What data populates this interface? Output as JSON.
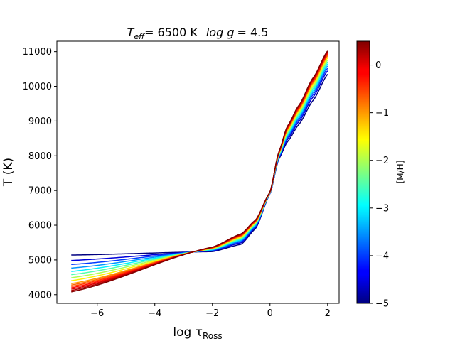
{
  "chart_data": {
    "type": "line",
    "title": "T_eff = 6500 K   log g = 4.5",
    "title_parts": {
      "teff_symbol": "T",
      "teff_sub": "eff",
      "teff_value": "= 6500 K",
      "logg_symbol": "log g",
      "logg_value": "= 4.5"
    },
    "xlabel": "log τ",
    "xlabel_sub": "Ross",
    "ylabel": "T (K)",
    "xlim": [
      -7.4,
      2.4
    ],
    "ylim": [
      3750,
      11300
    ],
    "xticks": [
      -6,
      -4,
      -2,
      0,
      2
    ],
    "xtick_labels": [
      "−6",
      "−4",
      "−2",
      "0",
      "2"
    ],
    "yticks": [
      4000,
      5000,
      6000,
      7000,
      8000,
      9000,
      10000,
      11000
    ],
    "ytick_labels": [
      "4000",
      "5000",
      "6000",
      "7000",
      "8000",
      "9000",
      "10000",
      "11000"
    ],
    "grid": false,
    "colorbar": {
      "label": "[M/H]",
      "range": [
        -5,
        0.5
      ],
      "colormap": "jet",
      "ticks": [
        0,
        -1,
        -2,
        -3,
        -4,
        -5
      ],
      "tick_labels": [
        "0",
        "−1",
        "−2",
        "−3",
        "−4",
        "−5"
      ]
    },
    "x_range_data": [
      -6.9,
      2.0
    ],
    "metallicities": [
      -5.0,
      -4.5,
      -4.0,
      -3.5,
      -3.0,
      -2.5,
      -2.0,
      -1.5,
      -1.0,
      -0.75,
      -0.5,
      -0.25,
      0.0,
      0.25,
      0.5
    ],
    "profile_anchors": {
      "x": [
        -6.9,
        -2.0,
        -1.0,
        -0.5,
        0.0,
        0.3,
        0.6,
        1.0,
        1.5,
        2.0
      ],
      "T_metal_poor": [
        5140,
        5240,
        5450,
        5900,
        6900,
        7900,
        8400,
        8900,
        9600,
        10350
      ],
      "T_metal_rich": [
        4080,
        5370,
        5750,
        6150,
        6950,
        8100,
        8850,
        9450,
        10250,
        11020
      ]
    }
  }
}
